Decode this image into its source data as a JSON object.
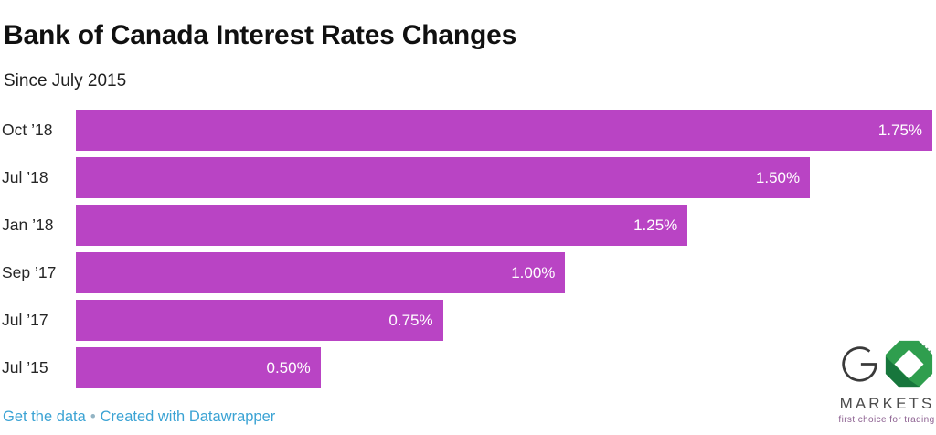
{
  "chart_data": {
    "type": "bar",
    "orientation": "horizontal",
    "title": "Bank of Canada Interest Rates Changes",
    "subtitle": "Since July 2015",
    "categories": [
      "Oct ’18",
      "Jul ’18",
      "Jan ’18",
      "Sep ’17",
      "Jul ’17",
      "Jul ’15"
    ],
    "values": [
      1.75,
      1.5,
      1.25,
      1.0,
      0.75,
      0.5
    ],
    "value_labels": [
      "1.75%",
      "1.50%",
      "1.25%",
      "1.00%",
      "0.75%",
      "0.50%"
    ],
    "xlabel": "",
    "ylabel": "",
    "xlim": [
      0,
      1.75
    ],
    "grid": false,
    "legend": false,
    "bar_color": "#b944c4",
    "value_label_color": "#ffffff"
  },
  "footer": {
    "get_data_label": "Get the data",
    "separator": "•",
    "credit_label": "Created with Datawrapper",
    "link_color": "#3ba3d4"
  },
  "logo": {
    "brand": "GO",
    "markets_label": "MARKETS",
    "tagline": "first choice for trading",
    "green": "#2f9e4e",
    "dark_green": "#14713a",
    "letter_color": "#3a3a3a"
  }
}
